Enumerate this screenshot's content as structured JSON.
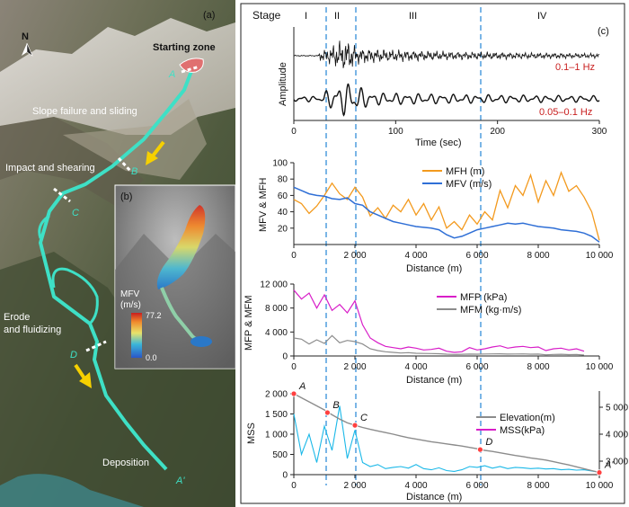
{
  "panel_a": {
    "tag": "(a)",
    "north": "N",
    "zones": {
      "start": "Starting zone",
      "slope": "Slope failure and sliding",
      "impact": "Impact and shearing",
      "erode_1": "Erode",
      "erode_2": "and fluidizing",
      "deposit": "Deposition"
    },
    "points": [
      "A",
      "B",
      "C",
      "D",
      "A'"
    ]
  },
  "panel_b": {
    "tag": "(b)",
    "legend_title_1": "MFV",
    "legend_title_2": "(m/s)",
    "legend_max": "77.2",
    "legend_min": "0.0"
  },
  "panel_c": {
    "tag": "(c)",
    "stage_title": "Stage",
    "stages": [
      "I",
      "II",
      "III",
      "IV"
    ],
    "stage_boundaries_km": [
      1.1,
      2.0,
      6.1
    ]
  },
  "chart_data": [
    {
      "type": "line",
      "ylabel": "Amplitude",
      "xlabel": "Time (sec)",
      "xlim": [
        0,
        300
      ],
      "xticks": [
        "0",
        "100",
        "200",
        "300"
      ],
      "series": [
        {
          "name": "0.1–1 Hz",
          "color": "#111111"
        },
        {
          "name": "0.05–0.1 Hz",
          "color": "#111111"
        }
      ],
      "annotation_color": "#c81e1e"
    },
    {
      "type": "line",
      "ylabel": "MFV & MFH",
      "xlabel": "Distance (m)",
      "xlim": [
        0,
        10000
      ],
      "ylim": [
        0,
        100
      ],
      "xticks": [
        "0",
        "2 000",
        "4 000",
        "6 000",
        "8 000",
        "10 000"
      ],
      "yticks": [
        "20",
        "40",
        "60",
        "80",
        "100"
      ],
      "x": [
        0,
        250,
        500,
        750,
        1000,
        1250,
        1500,
        1750,
        2000,
        2250,
        2500,
        2750,
        3000,
        3250,
        3500,
        3750,
        4000,
        4250,
        4500,
        4750,
        5000,
        5250,
        5500,
        5750,
        6000,
        6250,
        6500,
        6750,
        7000,
        7250,
        7500,
        7750,
        8000,
        8250,
        8500,
        8750,
        9000,
        9250,
        9500,
        9750,
        10000
      ],
      "series": [
        {
          "name": "MFH (m)",
          "color": "#f39a1e",
          "values": [
            55,
            50,
            38,
            47,
            60,
            75,
            62,
            55,
            70,
            58,
            35,
            45,
            32,
            48,
            40,
            55,
            36,
            50,
            30,
            46,
            20,
            28,
            18,
            36,
            25,
            40,
            30,
            66,
            45,
            72,
            60,
            85,
            52,
            78,
            60,
            88,
            65,
            72,
            58,
            40,
            5
          ]
        },
        {
          "name": "MFV (m/s)",
          "color": "#2f6fd6",
          "values": [
            70,
            66,
            62,
            60,
            59,
            56,
            55,
            57,
            50,
            48,
            40,
            36,
            32,
            28,
            26,
            24,
            22,
            21,
            20,
            18,
            12,
            8,
            10,
            14,
            18,
            20,
            22,
            24,
            26,
            25,
            26,
            24,
            22,
            21,
            20,
            18,
            17,
            16,
            14,
            10,
            3
          ]
        }
      ]
    },
    {
      "type": "line",
      "ylabel": "MFP & MFM",
      "xlabel": "Distance (m)",
      "xlim": [
        0,
        10000
      ],
      "ylim": [
        0,
        12000
      ],
      "xticks": [
        "0",
        "2 000",
        "4 000",
        "6 000",
        "8 000",
        "10 000"
      ],
      "yticks": [
        "0",
        "4 000",
        "8 000",
        "12 000"
      ],
      "x": [
        0,
        250,
        500,
        750,
        1000,
        1250,
        1500,
        1750,
        2000,
        2250,
        2500,
        2750,
        3000,
        3250,
        3500,
        3750,
        4000,
        4250,
        4500,
        4750,
        5000,
        5250,
        5500,
        5750,
        6000,
        6250,
        6500,
        6750,
        7000,
        7250,
        7500,
        7750,
        8000,
        8250,
        8500,
        8750,
        9000,
        9250,
        9500
      ],
      "series": [
        {
          "name": "MFP (kPa)",
          "color": "#d81ec8",
          "values": [
            11000,
            9500,
            10500,
            8000,
            10200,
            7600,
            8600,
            7200,
            9200,
            5200,
            3000,
            2200,
            1600,
            1400,
            1200,
            1500,
            1300,
            1000,
            1100,
            1300,
            800,
            600,
            700,
            1400,
            1000,
            1200,
            1500,
            1700,
            1300,
            1500,
            1600,
            1400,
            1500,
            900,
            1200,
            1300,
            1000,
            1200,
            800
          ]
        },
        {
          "name": "MFM (kg·m/s)",
          "color": "#8c8c8c",
          "values": [
            3000,
            2800,
            2000,
            2700,
            2100,
            3400,
            2200,
            2600,
            2400,
            2000,
            1200,
            900,
            700,
            600,
            500,
            550,
            450,
            420,
            400,
            380,
            300,
            250,
            280,
            320,
            300,
            330,
            350,
            360,
            320,
            330,
            340,
            300,
            320,
            200,
            260,
            280,
            220,
            250,
            150
          ]
        }
      ]
    },
    {
      "type": "line",
      "ylabel": "MSS",
      "xlabel": "Distance (m)",
      "xlim": [
        0,
        10000
      ],
      "ylim": [
        0,
        2000
      ],
      "y2lim": [
        2500,
        5500
      ],
      "xticks": [
        "0",
        "2 000",
        "4 000",
        "6 000",
        "8 000",
        "10 000"
      ],
      "yticks": [
        "0",
        "500",
        "1 000",
        "1 500",
        "2 000"
      ],
      "y2ticks": [
        "3 000",
        "4 000",
        "5 000"
      ],
      "x": [
        0,
        250,
        500,
        750,
        1000,
        1250,
        1500,
        1750,
        2000,
        2250,
        2500,
        2750,
        3000,
        3250,
        3500,
        3750,
        4000,
        4250,
        4500,
        4750,
        5000,
        5250,
        5500,
        5750,
        6000,
        6250,
        6500,
        6750,
        7000,
        7250,
        7500,
        7750,
        8000,
        8250,
        8500,
        8750,
        9000,
        9250,
        9500,
        9750,
        10000
      ],
      "series": [
        {
          "name": "Elevation(m)",
          "color": "#8c8c8c",
          "axis": "right",
          "values": [
            5500,
            5350,
            5200,
            5050,
            4900,
            4720,
            4560,
            4420,
            4330,
            4250,
            4180,
            4120,
            4060,
            4000,
            3930,
            3870,
            3820,
            3770,
            3720,
            3680,
            3640,
            3600,
            3560,
            3510,
            3460,
            3400,
            3360,
            3310,
            3260,
            3210,
            3170,
            3120,
            3080,
            3040,
            2980,
            2920,
            2860,
            2790,
            2720,
            2650,
            2580
          ]
        },
        {
          "name": "MSS(kPa)",
          "color": "#1ab8e8",
          "axis": "left",
          "values": [
            1500,
            500,
            1000,
            300,
            1200,
            600,
            1700,
            400,
            1100,
            300,
            200,
            250,
            150,
            180,
            200,
            160,
            250,
            150,
            120,
            170,
            100,
            80,
            120,
            200,
            180,
            220,
            160,
            200,
            150,
            180,
            170,
            150,
            160,
            140,
            150,
            120,
            130,
            110,
            120,
            90,
            60
          ]
        }
      ],
      "points": [
        {
          "label": "A",
          "x": 0,
          "elev": 5500
        },
        {
          "label": "B",
          "x": 1100,
          "elev": 4800
        },
        {
          "label": "C",
          "x": 2000,
          "elev": 4330
        },
        {
          "label": "D",
          "x": 6100,
          "elev": 3430
        },
        {
          "label": "A'",
          "x": 10000,
          "elev": 2580
        }
      ]
    }
  ]
}
